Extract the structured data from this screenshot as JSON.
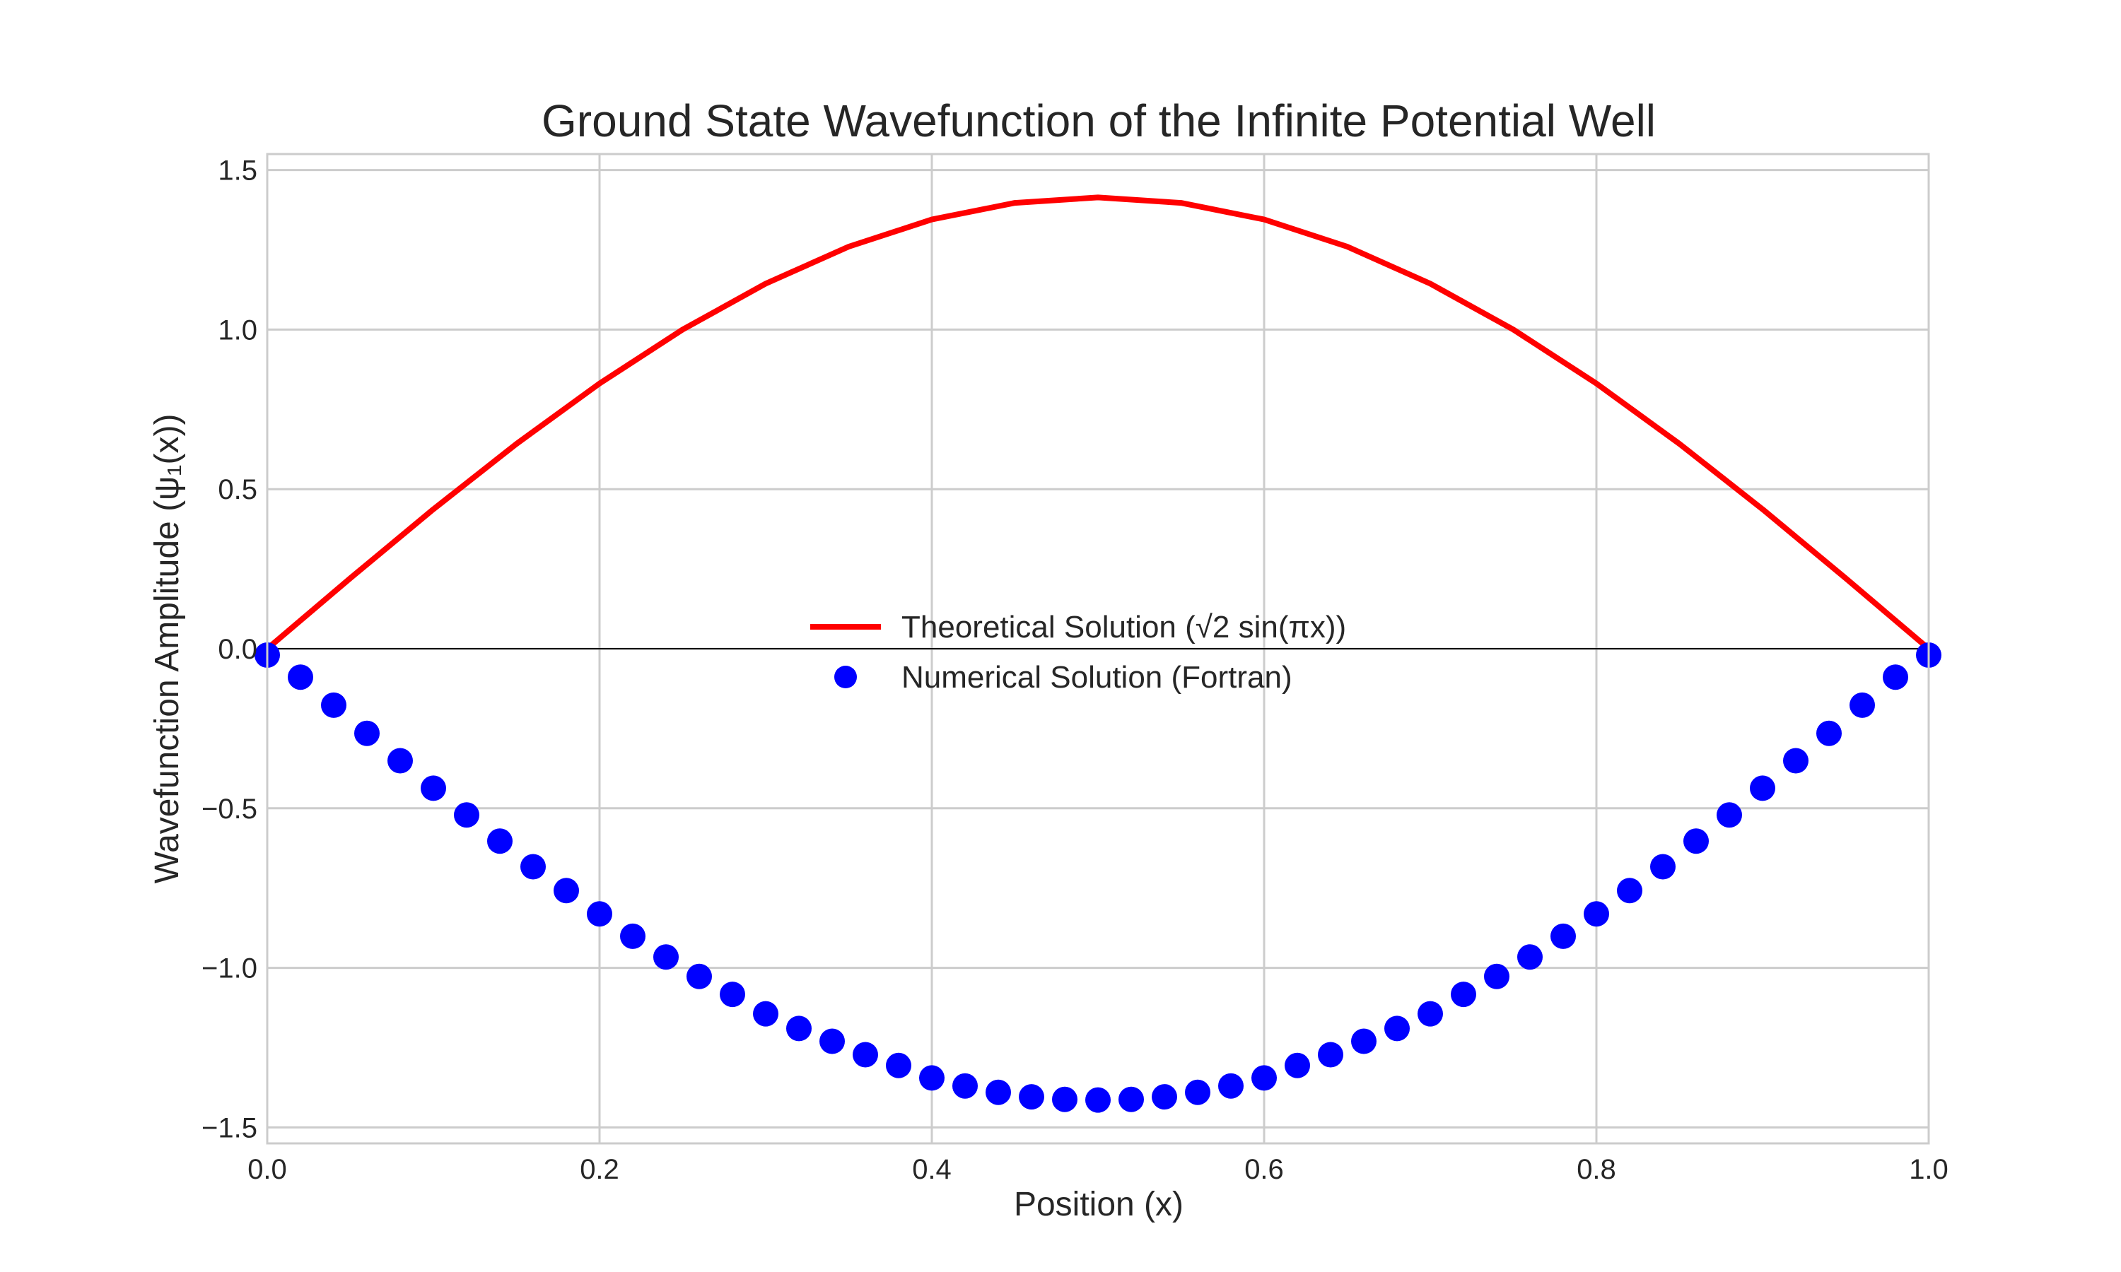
{
  "chart_data": {
    "type": "line",
    "title": "Ground State Wavefunction of the Infinite Potential Well",
    "xlabel": "Position (x)",
    "ylabel": "Wavefunction Amplitude (ψ₁(x))",
    "xlim": [
      0.0,
      1.0
    ],
    "ylim": [
      -1.55,
      1.55
    ],
    "xticks": [
      0.0,
      0.2,
      0.4,
      0.6,
      0.8,
      1.0
    ],
    "xtick_labels": [
      "0.0",
      "0.2",
      "0.4",
      "0.6",
      "0.8",
      "1.0"
    ],
    "yticks": [
      -1.5,
      -1.0,
      -0.5,
      0.0,
      0.5,
      1.0,
      1.5
    ],
    "ytick_labels": [
      "−1.5",
      "−1.0",
      "−0.5",
      "0.0",
      "0.5",
      "1.0",
      "1.5"
    ],
    "grid": true,
    "zero_line": true,
    "legend_placement": "center",
    "series": [
      {
        "name": "Theoretical Solution (√2 sin(πx))",
        "style": "line",
        "color": "#ff0000",
        "x": [
          0.0,
          0.05,
          0.1,
          0.15,
          0.2,
          0.25,
          0.3,
          0.35,
          0.4,
          0.45,
          0.5,
          0.55,
          0.6,
          0.65,
          0.7,
          0.75,
          0.8,
          0.85,
          0.9,
          0.95,
          1.0
        ],
        "y": [
          0.0,
          0.221,
          0.437,
          0.642,
          0.831,
          1.0,
          1.144,
          1.26,
          1.345,
          1.397,
          1.414,
          1.397,
          1.345,
          1.26,
          1.144,
          1.0,
          0.831,
          0.642,
          0.437,
          0.221,
          0.0
        ]
      },
      {
        "name": "Numerical Solution (Fortran)",
        "style": "markers",
        "color": "#0000ff",
        "x": [
          0.0,
          0.02,
          0.04,
          0.06,
          0.08,
          0.1,
          0.12,
          0.14,
          0.16,
          0.18,
          0.2,
          0.22,
          0.24,
          0.26,
          0.28,
          0.3,
          0.32,
          0.34,
          0.36,
          0.38,
          0.4,
          0.42,
          0.44,
          0.46,
          0.48,
          0.5,
          0.52,
          0.54,
          0.56,
          0.58,
          0.6,
          0.62,
          0.64,
          0.66,
          0.68,
          0.7,
          0.72,
          0.74,
          0.76,
          0.78,
          0.8,
          0.82,
          0.84,
          0.86,
          0.88,
          0.9,
          0.92,
          0.94,
          0.96,
          0.98,
          1.0
        ],
        "y": [
          -0.02,
          -0.089,
          -0.177,
          -0.265,
          -0.351,
          -0.437,
          -0.521,
          -0.603,
          -0.683,
          -0.758,
          -0.831,
          -0.901,
          -0.966,
          -1.027,
          -1.083,
          -1.144,
          -1.19,
          -1.23,
          -1.272,
          -1.306,
          -1.345,
          -1.37,
          -1.39,
          -1.404,
          -1.412,
          -1.414,
          -1.412,
          -1.404,
          -1.39,
          -1.37,
          -1.345,
          -1.306,
          -1.272,
          -1.23,
          -1.19,
          -1.144,
          -1.083,
          -1.027,
          -0.966,
          -0.901,
          -0.831,
          -0.758,
          -0.683,
          -0.603,
          -0.521,
          -0.437,
          -0.351,
          -0.265,
          -0.177,
          -0.089,
          -0.02
        ]
      }
    ]
  }
}
